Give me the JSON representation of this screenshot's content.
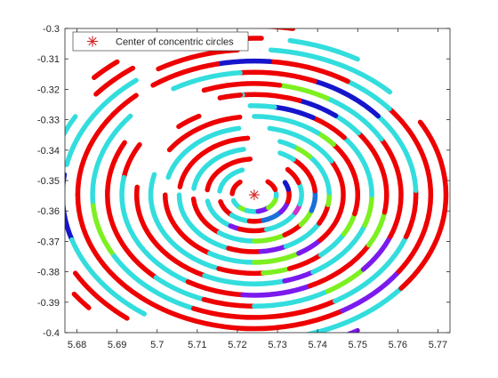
{
  "chart_data": {
    "type": "scatter",
    "title": "",
    "xlabel": "",
    "ylabel": "",
    "xlim": [
      5.677,
      5.773
    ],
    "ylim": [
      -0.4,
      -0.3
    ],
    "x_ticks": [
      5.68,
      5.69,
      5.7,
      5.71,
      5.72,
      5.73,
      5.74,
      5.75,
      5.76,
      5.77
    ],
    "x_tick_labels": [
      "5.68",
      "5.69",
      "5.7",
      "5.71",
      "5.72",
      "5.73",
      "5.74",
      "5.75",
      "5.76",
      "5.77"
    ],
    "y_ticks": [
      -0.4,
      -0.39,
      -0.38,
      -0.37,
      -0.36,
      -0.35,
      -0.34,
      -0.33,
      -0.32,
      -0.31,
      -0.3
    ],
    "y_tick_labels": [
      "-0.4",
      "-0.39",
      "-0.38",
      "-0.37",
      "-0.36",
      "-0.35",
      "-0.34",
      "-0.33",
      "-0.32",
      "-0.31",
      "-0.3"
    ],
    "grid": false,
    "legend": {
      "position": "top-left",
      "entries": [
        "Center of concentric circles"
      ]
    },
    "center": {
      "name": "Center of concentric circles",
      "x": 5.7242,
      "y": -0.3547,
      "marker": "asterisk",
      "color": "#d62728"
    },
    "colors": {
      "red": "#ee0000",
      "cyan": "#33dddd",
      "blue": "#1515cc",
      "violet": "#7a1aee",
      "green": "#7df020",
      "midblue": "#1a6fd8",
      "magenta": "#cc33cc"
    },
    "rings": [
      {
        "radius": 0.0055,
        "segments": [
          {
            "from": 200,
            "to": 232,
            "color": "cyan"
          },
          {
            "from": 232,
            "to": 250,
            "color": "green"
          },
          {
            "from": 250,
            "to": 280,
            "color": "cyan"
          },
          {
            "from": 280,
            "to": 310,
            "color": "violet"
          },
          {
            "from": 310,
            "to": 355,
            "color": "green"
          },
          {
            "from": 355,
            "to": 365,
            "color": "cyan"
          },
          {
            "from": 18,
            "to": 52,
            "color": "red"
          },
          {
            "from": 130,
            "to": 176,
            "color": "red"
          }
        ]
      },
      {
        "radius": 0.0087,
        "segments": [
          {
            "from": 195,
            "to": 230,
            "color": "red"
          },
          {
            "from": 230,
            "to": 262,
            "color": "cyan"
          },
          {
            "from": 262,
            "to": 285,
            "color": "red"
          },
          {
            "from": 285,
            "to": 320,
            "color": "midblue"
          },
          {
            "from": 320,
            "to": 345,
            "color": "violet"
          },
          {
            "from": 345,
            "to": 372,
            "color": "red"
          },
          {
            "from": 372,
            "to": 388,
            "color": "blue"
          },
          {
            "from": 110,
            "to": 172,
            "color": "cyan"
          }
        ]
      },
      {
        "radius": 0.0118,
        "segments": [
          {
            "from": 190,
            "to": 240,
            "color": "cyan"
          },
          {
            "from": 240,
            "to": 252,
            "color": "violet"
          },
          {
            "from": 252,
            "to": 285,
            "color": "red"
          },
          {
            "from": 285,
            "to": 330,
            "color": "cyan"
          },
          {
            "from": 330,
            "to": 345,
            "color": "magenta"
          },
          {
            "from": 345,
            "to": 380,
            "color": "cyan"
          },
          {
            "from": 380,
            "to": 405,
            "color": "red"
          },
          {
            "from": 95,
            "to": 172,
            "color": "red"
          }
        ]
      },
      {
        "radius": 0.0152,
        "segments": [
          {
            "from": 185,
            "to": 235,
            "color": "red"
          },
          {
            "from": 235,
            "to": 270,
            "color": "cyan"
          },
          {
            "from": 270,
            "to": 300,
            "color": "green"
          },
          {
            "from": 300,
            "to": 320,
            "color": "red"
          },
          {
            "from": 320,
            "to": 340,
            "color": "green"
          },
          {
            "from": 340,
            "to": 365,
            "color": "midblue"
          },
          {
            "from": 365,
            "to": 410,
            "color": "red"
          },
          {
            "from": 410,
            "to": 425,
            "color": "cyan"
          },
          {
            "from": 100,
            "to": 172,
            "color": "cyan"
          }
        ]
      },
      {
        "radius": 0.0187,
        "segments": [
          {
            "from": 180,
            "to": 250,
            "color": "cyan"
          },
          {
            "from": 250,
            "to": 275,
            "color": "red"
          },
          {
            "from": 275,
            "to": 295,
            "color": "violet"
          },
          {
            "from": 295,
            "to": 330,
            "color": "cyan"
          },
          {
            "from": 330,
            "to": 350,
            "color": "red"
          },
          {
            "from": 350,
            "to": 362,
            "color": "green"
          },
          {
            "from": 362,
            "to": 402,
            "color": "cyan"
          },
          {
            "from": 402,
            "to": 418,
            "color": "green"
          },
          {
            "from": 418,
            "to": 430,
            "color": "cyan"
          },
          {
            "from": 95,
            "to": 172,
            "color": "red"
          }
        ]
      },
      {
        "radius": 0.0222,
        "segments": [
          {
            "from": 180,
            "to": 240,
            "color": "red"
          },
          {
            "from": 240,
            "to": 270,
            "color": "cyan"
          },
          {
            "from": 270,
            "to": 300,
            "color": "green"
          },
          {
            "from": 300,
            "to": 318,
            "color": "violet"
          },
          {
            "from": 318,
            "to": 390,
            "color": "red"
          },
          {
            "from": 390,
            "to": 440,
            "color": "cyan"
          },
          {
            "from": 100,
            "to": 165,
            "color": "cyan"
          }
        ]
      },
      {
        "radius": 0.0258,
        "segments": [
          {
            "from": 165,
            "to": 250,
            "color": "cyan"
          },
          {
            "from": 250,
            "to": 275,
            "color": "red"
          },
          {
            "from": 275,
            "to": 290,
            "color": "green"
          },
          {
            "from": 290,
            "to": 310,
            "color": "red"
          },
          {
            "from": 310,
            "to": 330,
            "color": "cyan"
          },
          {
            "from": 330,
            "to": 346,
            "color": "green"
          },
          {
            "from": 346,
            "to": 400,
            "color": "red"
          },
          {
            "from": 400,
            "to": 412,
            "color": "green"
          },
          {
            "from": 412,
            "to": 450,
            "color": "cyan"
          },
          {
            "from": 98,
            "to": 145,
            "color": "red"
          }
        ]
      },
      {
        "radius": 0.0293,
        "segments": [
          {
            "from": 175,
            "to": 245,
            "color": "red"
          },
          {
            "from": 245,
            "to": 285,
            "color": "cyan"
          },
          {
            "from": 285,
            "to": 300,
            "color": "violet"
          },
          {
            "from": 300,
            "to": 340,
            "color": "cyan"
          },
          {
            "from": 340,
            "to": 360,
            "color": "green"
          },
          {
            "from": 360,
            "to": 400,
            "color": "cyan"
          },
          {
            "from": 400,
            "to": 420,
            "color": "red"
          },
          {
            "from": 420,
            "to": 440,
            "color": "blue"
          },
          {
            "from": 440,
            "to": 452,
            "color": "cyan"
          },
          {
            "from": 118,
            "to": 130,
            "color": "red"
          }
        ]
      },
      {
        "radius": 0.033,
        "segments": [
          {
            "from": 150,
            "to": 170,
            "color": "red"
          },
          {
            "from": 170,
            "to": 240,
            "color": "cyan"
          },
          {
            "from": 240,
            "to": 265,
            "color": "red"
          },
          {
            "from": 265,
            "to": 295,
            "color": "violet"
          },
          {
            "from": 295,
            "to": 330,
            "color": "red"
          },
          {
            "from": 330,
            "to": 350,
            "color": "green"
          },
          {
            "from": 350,
            "to": 398,
            "color": "red"
          },
          {
            "from": 398,
            "to": 412,
            "color": "cyan"
          },
          {
            "from": 412,
            "to": 430,
            "color": "blue"
          },
          {
            "from": 430,
            "to": 455,
            "color": "red"
          },
          {
            "from": 455,
            "to": 465,
            "color": "cyan"
          },
          {
            "from": 96,
            "to": 105,
            "color": "red"
          }
        ]
      },
      {
        "radius": 0.0366,
        "segments": [
          {
            "from": 152,
            "to": 178,
            "color": "red"
          },
          {
            "from": 178,
            "to": 228,
            "color": "red"
          },
          {
            "from": 228,
            "to": 250,
            "color": "cyan"
          },
          {
            "from": 250,
            "to": 270,
            "color": "red"
          },
          {
            "from": 270,
            "to": 300,
            "color": "cyan"
          },
          {
            "from": 300,
            "to": 318,
            "color": "green"
          },
          {
            "from": 318,
            "to": 338,
            "color": "violet"
          },
          {
            "from": 338,
            "to": 390,
            "color": "red"
          },
          {
            "from": 390,
            "to": 420,
            "color": "cyan"
          },
          {
            "from": 420,
            "to": 440,
            "color": "green"
          },
          {
            "from": 440,
            "to": 470,
            "color": "red"
          }
        ]
      },
      {
        "radius": 0.0403,
        "segments": [
          {
            "from": 140,
            "to": 185,
            "color": "cyan"
          },
          {
            "from": 185,
            "to": 210,
            "color": "green"
          },
          {
            "from": 210,
            "to": 248,
            "color": "cyan"
          },
          {
            "from": 248,
            "to": 300,
            "color": "red"
          },
          {
            "from": 300,
            "to": 340,
            "color": "cyan"
          },
          {
            "from": 340,
            "to": 362,
            "color": "red"
          },
          {
            "from": 362,
            "to": 400,
            "color": "cyan"
          },
          {
            "from": 400,
            "to": 428,
            "color": "blue"
          },
          {
            "from": 428,
            "to": 455,
            "color": "red"
          },
          {
            "from": 455,
            "to": 480,
            "color": "cyan"
          }
        ]
      },
      {
        "radius": 0.044,
        "segments": [
          {
            "from": 132,
            "to": 180,
            "color": "red"
          },
          {
            "from": 180,
            "to": 212,
            "color": "red"
          },
          {
            "from": 212,
            "to": 230,
            "color": "red"
          },
          {
            "from": 230,
            "to": 300,
            "color": "red"
          },
          {
            "from": 300,
            "to": 325,
            "color": "violet"
          },
          {
            "from": 325,
            "to": 400,
            "color": "red"
          },
          {
            "from": 400,
            "to": 418,
            "color": "cyan"
          },
          {
            "from": 418,
            "to": 445,
            "color": "red"
          },
          {
            "from": 445,
            "to": 462,
            "color": "blue"
          },
          {
            "from": 462,
            "to": 485,
            "color": "red"
          }
        ]
      },
      {
        "radius": 0.0478,
        "segments": [
          {
            "from": 128,
            "to": 168,
            "color": "cyan"
          },
          {
            "from": 172,
            "to": 198,
            "color": "blue"
          },
          {
            "from": 198,
            "to": 235,
            "color": "cyan"
          },
          {
            "from": 262,
            "to": 320,
            "color": "cyan"
          },
          {
            "from": 320,
            "to": 390,
            "color": "red"
          },
          {
            "from": 405,
            "to": 445,
            "color": "cyan"
          },
          {
            "from": 455,
            "to": 480,
            "color": "red"
          }
        ]
      },
      {
        "radius": 0.0515,
        "segments": [
          {
            "from": 126,
            "to": 140,
            "color": "red"
          },
          {
            "from": 150,
            "to": 168,
            "color": "cyan"
          },
          {
            "from": 210,
            "to": 232,
            "color": "red"
          },
          {
            "from": 280,
            "to": 300,
            "color": "violet"
          },
          {
            "from": 420,
            "to": 440,
            "color": "cyan"
          },
          {
            "from": 448,
            "to": 462,
            "color": "red"
          }
        ]
      },
      {
        "radius": 0.0555,
        "segments": [
          {
            "from": 128,
            "to": 136,
            "color": "red"
          },
          {
            "from": 216,
            "to": 222,
            "color": "red"
          },
          {
            "from": 440,
            "to": 450,
            "color": "red"
          }
        ]
      }
    ]
  }
}
